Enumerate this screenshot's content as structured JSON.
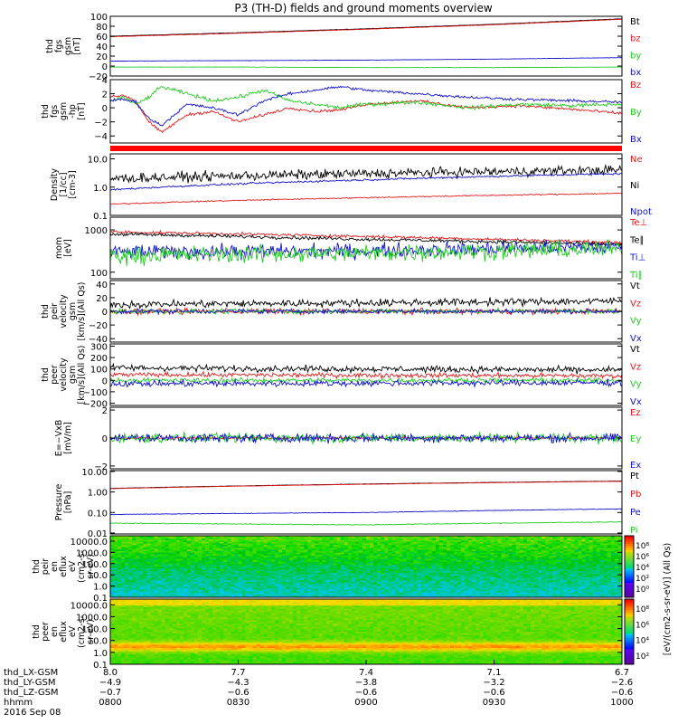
{
  "title": "P3 (TH-D) fields and ground moments overview",
  "colors": {
    "black": "#000000",
    "red": "#e41a1c",
    "green": "#22cc22",
    "blue": "#1111cc",
    "bar": "#ff0000"
  },
  "chart_data": [
    {
      "id": "fgs",
      "type": "line",
      "ylabel_lines": [
        "thd",
        "fgs",
        "gsm",
        "[nT]"
      ],
      "ylim": [
        -20,
        100
      ],
      "yticks": [
        "100",
        "80",
        "60",
        "40",
        "20",
        "0",
        "−20"
      ],
      "ytick_values": [
        100,
        80,
        60,
        40,
        20,
        0,
        -20
      ],
      "series": [
        {
          "name": "Bt",
          "color": "black",
          "x": [
            8.0,
            8.5,
            9.0,
            9.5,
            10.0
          ],
          "values": [
            60,
            67,
            75,
            84,
            95
          ],
          "noise": 0.5
        },
        {
          "name": "bz",
          "color": "red",
          "x": [
            8.0,
            8.5,
            9.0,
            9.5,
            10.0
          ],
          "values": [
            59,
            66,
            74,
            83,
            94
          ],
          "noise": 0.5
        },
        {
          "name": "by",
          "color": "green",
          "x": [
            8.0,
            8.5,
            9.0,
            9.5,
            10.0
          ],
          "values": [
            -2,
            -2,
            -3,
            -3,
            -2
          ],
          "noise": 0.4
        },
        {
          "name": "bx",
          "color": "blue",
          "x": [
            8.0,
            8.5,
            9.0,
            9.5,
            10.0
          ],
          "values": [
            10,
            11,
            12,
            14,
            17
          ],
          "noise": 0.4
        }
      ]
    },
    {
      "id": "fgs_hp",
      "type": "line",
      "ylabel_lines": [
        "thd",
        "fgs",
        "gsm",
        "-hp",
        "[nT]"
      ],
      "ylim": [
        -5,
        4
      ],
      "yticks": [
        "4",
        "2",
        "0",
        "−2",
        "−4"
      ],
      "ytick_values": [
        4,
        2,
        0,
        -2,
        -4
      ],
      "series": [
        {
          "name": "Bz",
          "color": "red",
          "x": [
            8.0,
            8.05,
            8.1,
            8.15,
            8.2,
            8.3,
            8.4,
            8.5,
            8.6,
            8.7,
            8.8,
            8.9,
            9.0,
            9.2,
            9.4,
            9.6,
            9.8,
            10.0
          ],
          "values": [
            1.5,
            1.8,
            1.0,
            -2.0,
            -3.5,
            -1.0,
            -0.5,
            -2.0,
            -1.0,
            0.0,
            -0.5,
            -0.3,
            0.5,
            1.0,
            0.0,
            0.3,
            -0.2,
            -0.8
          ],
          "noise": 0.3
        },
        {
          "name": "By",
          "color": "green",
          "x": [
            8.0,
            8.05,
            8.1,
            8.15,
            8.2,
            8.3,
            8.4,
            8.5,
            8.6,
            8.7,
            8.8,
            8.9,
            9.0,
            9.2,
            9.4,
            9.6,
            9.8,
            10.0
          ],
          "values": [
            1.0,
            1.5,
            0.5,
            1.5,
            3.0,
            2.0,
            1.0,
            1.5,
            2.5,
            1.0,
            0.5,
            0.0,
            0.5,
            0.8,
            0.0,
            0.5,
            0.3,
            0.5
          ],
          "noise": 0.4
        },
        {
          "name": "Bx",
          "color": "blue",
          "x": [
            8.0,
            8.05,
            8.1,
            8.15,
            8.2,
            8.3,
            8.4,
            8.5,
            8.6,
            8.7,
            8.8,
            8.9,
            9.0,
            9.2,
            9.4,
            9.6,
            9.8,
            10.0
          ],
          "values": [
            1.0,
            1.2,
            0.8,
            -1.5,
            -2.5,
            0.5,
            0.0,
            -1.0,
            1.0,
            2.0,
            2.5,
            3.0,
            2.5,
            2.0,
            1.5,
            1.2,
            1.0,
            0.8
          ],
          "noise": 0.3
        }
      ]
    },
    {
      "id": "density",
      "type": "line",
      "log": true,
      "ylabel_lines": [
        "Density",
        "[1/cc]",
        "[cm-3]"
      ],
      "ylim": [
        0.1,
        15
      ],
      "yticks": [
        "10.0",
        "1.0",
        "0.1"
      ],
      "ytick_values": [
        10,
        1,
        0.1
      ],
      "series": [
        {
          "name": "Ne",
          "color": "red",
          "x": [
            8.0,
            10.0
          ],
          "values": [
            0.25,
            0.6
          ],
          "noise": 0.03
        },
        {
          "name": "Ni",
          "color": "black",
          "x": [
            8.0,
            8.5,
            9.0,
            10.0
          ],
          "values": [
            2.0,
            2.5,
            3.0,
            4.0
          ],
          "noise": 0.25
        },
        {
          "name": "Npot",
          "color": "blue",
          "x": [
            8.0,
            8.5,
            9.0,
            10.0
          ],
          "values": [
            0.8,
            1.3,
            1.8,
            3.0
          ],
          "noise": 0.05
        }
      ]
    },
    {
      "id": "temp",
      "type": "line",
      "log": true,
      "ylabel_lines": [
        "mom",
        "[eV]"
      ],
      "ylim": [
        70,
        2000
      ],
      "yticks": [
        "1000",
        "100"
      ],
      "ytick_values": [
        1000,
        100
      ],
      "series": [
        {
          "name": "Te⊥",
          "color": "red",
          "x": [
            8.0,
            9.0,
            10.0
          ],
          "values": [
            900,
            700,
            500
          ],
          "noise": 0.05
        },
        {
          "name": "Te∥",
          "color": "black",
          "x": [
            8.0,
            9.0,
            10.0
          ],
          "values": [
            800,
            600,
            450
          ],
          "noise": 0.06
        },
        {
          "name": "Ti⊥",
          "color": "blue",
          "x": [
            8.0,
            9.0,
            10.0
          ],
          "values": [
            300,
            320,
            400
          ],
          "noise": 0.25
        },
        {
          "name": "Ti∥",
          "color": "green",
          "x": [
            8.0,
            9.0,
            10.0
          ],
          "values": [
            250,
            280,
            350
          ],
          "noise": 0.3
        }
      ]
    },
    {
      "id": "peer_v",
      "type": "line",
      "ylabel_lines": [
        "thd",
        "peir",
        "velocity",
        "gsm",
        "[km/s](All Qs)"
      ],
      "ylim": [
        -45,
        45
      ],
      "yticks": [
        "40",
        "20",
        "0",
        "−20",
        "−40"
      ],
      "ytick_values": [
        40,
        20,
        0,
        -20,
        -40
      ],
      "series": [
        {
          "name": "Vt",
          "color": "black",
          "x": [
            8.0,
            10.0
          ],
          "values": [
            10,
            15
          ],
          "noise": 8
        },
        {
          "name": "Vz",
          "color": "red",
          "x": [
            8.0,
            10.0
          ],
          "values": [
            0,
            0
          ],
          "noise": 6
        },
        {
          "name": "Vy",
          "color": "green",
          "x": [
            8.0,
            10.0
          ],
          "values": [
            0,
            0
          ],
          "noise": 5
        },
        {
          "name": "Vx",
          "color": "blue",
          "x": [
            8.0,
            10.0
          ],
          "values": [
            0,
            0
          ],
          "noise": 5
        }
      ]
    },
    {
      "id": "peer_v2",
      "type": "line",
      "ylabel_lines": [
        "thd",
        "peer",
        "velocity",
        "gsm",
        "[km/s](All Qs)"
      ],
      "ylim": [
        -220,
        320
      ],
      "yticks": [
        "300",
        "200",
        "100",
        "0",
        "−100",
        "−200"
      ],
      "ytick_values": [
        300,
        200,
        100,
        0,
        -100,
        -200
      ],
      "series": [
        {
          "name": "Vt",
          "color": "black",
          "x": [
            8.0,
            10.0
          ],
          "values": [
            110,
            90
          ],
          "noise": 40
        },
        {
          "name": "Vz",
          "color": "red",
          "x": [
            8.0,
            10.0
          ],
          "values": [
            50,
            40
          ],
          "noise": 30
        },
        {
          "name": "Vy",
          "color": "green",
          "x": [
            8.0,
            10.0
          ],
          "values": [
            0,
            0
          ],
          "noise": 30
        },
        {
          "name": "Vx",
          "color": "blue",
          "x": [
            8.0,
            10.0
          ],
          "values": [
            -30,
            -20
          ],
          "noise": 40
        }
      ]
    },
    {
      "id": "efield",
      "type": "line",
      "ylabel_lines": [
        "E=−VxB",
        "[mV/m]"
      ],
      "ylim": [
        -2.2,
        2.2
      ],
      "yticks": [
        "2",
        "0",
        "−2"
      ],
      "ytick_values": [
        2,
        0,
        -2
      ],
      "series": [
        {
          "name": "Ez",
          "color": "red",
          "x": [
            8.0,
            10.0
          ],
          "values": [
            0,
            0
          ],
          "noise": 0.1
        },
        {
          "name": "Ey",
          "color": "green",
          "x": [
            8.0,
            10.0
          ],
          "values": [
            0,
            0
          ],
          "noise": 0.5
        },
        {
          "name": "Ex",
          "color": "blue",
          "x": [
            8.0,
            10.0
          ],
          "values": [
            0,
            0
          ],
          "noise": 0.45
        }
      ]
    },
    {
      "id": "pressure",
      "type": "line",
      "log": true,
      "ylabel_lines": [
        "Pressure",
        "[nPa]"
      ],
      "ylim": [
        0.009,
        11
      ],
      "yticks": [
        "10.00",
        "1.00",
        "0.10",
        "0.01"
      ],
      "ytick_values": [
        10,
        1,
        0.1,
        0.01
      ],
      "series": [
        {
          "name": "Pt",
          "color": "black",
          "x": [
            8.0,
            10.0
          ],
          "values": [
            1.5,
            3.4
          ],
          "noise": 0.01
        },
        {
          "name": "Pb",
          "color": "red",
          "x": [
            8.0,
            10.0
          ],
          "values": [
            1.45,
            3.3
          ],
          "noise": 0.01
        },
        {
          "name": "Pe",
          "color": "blue",
          "x": [
            8.0,
            9.0,
            10.0
          ],
          "values": [
            0.08,
            0.1,
            0.15
          ],
          "noise": 0.02
        },
        {
          "name": "Pi",
          "color": "green",
          "x": [
            8.0,
            9.0,
            10.0
          ],
          "values": [
            0.03,
            0.025,
            0.035
          ],
          "noise": 0.03
        }
      ]
    },
    {
      "id": "peir_spec",
      "type": "heatmap",
      "ylabel_lines": [
        "thd",
        "peir",
        "en",
        "eflux",
        "eV",
        "(cm2-s-",
        "sr-eV)"
      ],
      "yticks": [
        "10000.0",
        "1000.0",
        "100.0",
        "10.0",
        "1.0",
        "0.1"
      ],
      "ytick_values": [
        10000,
        1000,
        100,
        10,
        1,
        0.1
      ],
      "ylim": [
        0.1,
        30000
      ],
      "level": "mid-high"
    },
    {
      "id": "peer_spec",
      "type": "heatmap",
      "ylabel_lines": [
        "thd",
        "peer",
        "en",
        "eflux",
        "eV",
        "(cm2-s-",
        "sr-eV)"
      ],
      "yticks": [
        "10000.0",
        "1000.0",
        "100.0",
        "10.0",
        "1.0",
        "0.1"
      ],
      "ytick_values": [
        10000,
        1000,
        100,
        10,
        1,
        0.1
      ],
      "ylim": [
        0.1,
        30000
      ],
      "level": "high"
    }
  ],
  "colorbar": {
    "label": "[eV/(cm2-s-sr-eV)] (All Qs)",
    "ticks_top": [
      "10⁸",
      "10⁶",
      "10⁴",
      "10²",
      "10⁰"
    ],
    "ticks_bottom": [
      "10⁸",
      "10⁶",
      "10⁴",
      "10²"
    ]
  },
  "x_axis": {
    "rows": [
      {
        "label": "thd_LX-GSM",
        "values": [
          "8.0",
          "7.7",
          "7.4",
          "7.1",
          "6.7"
        ]
      },
      {
        "label": "thd_LY-GSM",
        "values": [
          "−4.9",
          "−4.3",
          "−3.8",
          "−3.2",
          "−2.6"
        ]
      },
      {
        "label": "thd_LZ-GSM",
        "values": [
          "−0.7",
          "−0.6",
          "−0.6",
          "−0.6",
          "−0.6"
        ]
      },
      {
        "label": "hhmm",
        "values": [
          "0800",
          "0830",
          "0900",
          "0930",
          "1000"
        ]
      }
    ],
    "date": "2016 Sep 08",
    "range": [
      8.0,
      10.0
    ],
    "tick_hours": [
      8.0,
      8.5,
      9.0,
      9.5,
      10.0
    ]
  }
}
